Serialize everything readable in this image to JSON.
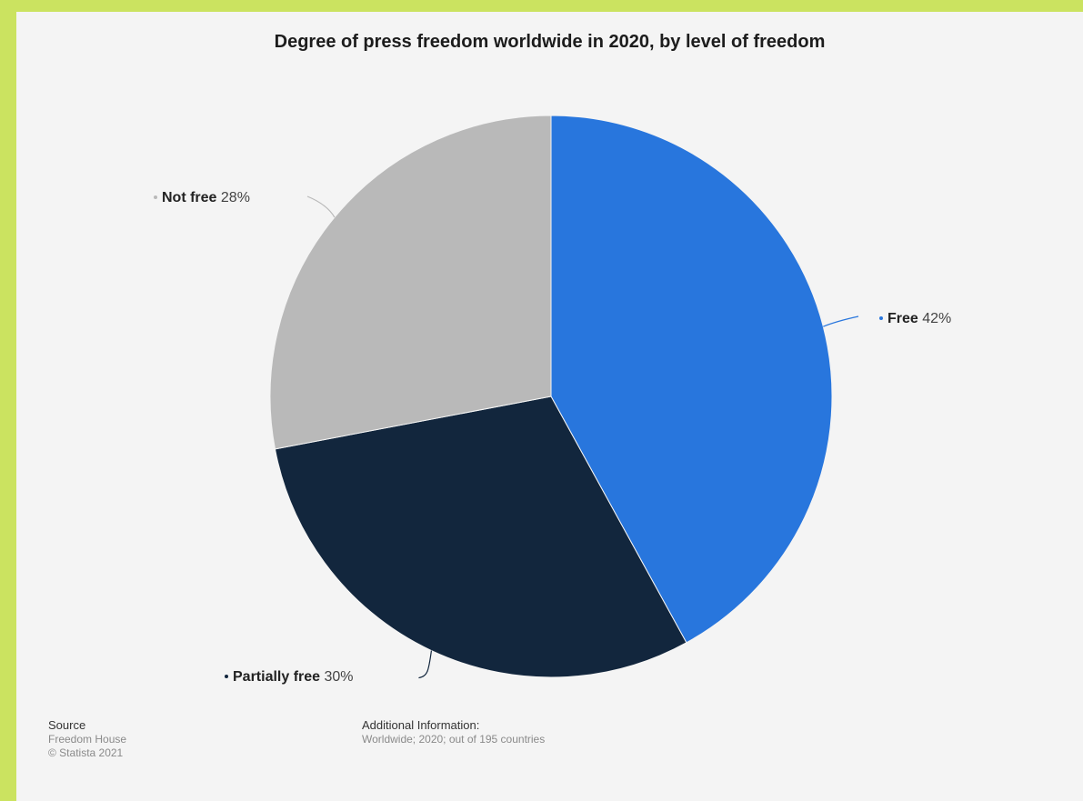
{
  "chart_data": {
    "type": "pie",
    "title": "Degree of press freedom worldwide in 2020, by level of freedom",
    "slices": [
      {
        "name": "Free",
        "value": 42,
        "label": "42%",
        "color": "#2876dd"
      },
      {
        "name": "Partially free",
        "value": 30,
        "label": "30%",
        "color": "#12263d"
      },
      {
        "name": "Not free",
        "value": 28,
        "label": "28%",
        "color": "#b9b9b9"
      }
    ]
  },
  "footer": {
    "source_heading": "Source",
    "source_name": "Freedom House",
    "copyright": "© Statista 2021",
    "additional_heading": "Additional Information:",
    "additional_text": "Worldwide; 2020; out of 195 countries"
  }
}
